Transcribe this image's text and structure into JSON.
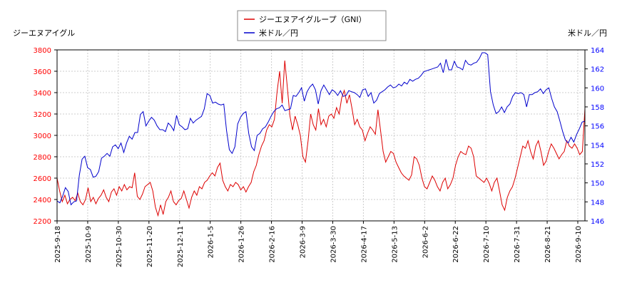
{
  "chart_data": {
    "type": "line",
    "left_axis_label": "ジーエヌアイグル",
    "right_axis_label": "米ドル／円",
    "legend": [
      "ジーエヌアイグループ（GNI）",
      "米ドル／円"
    ],
    "legend_placement": "top-center",
    "grid": true,
    "ylim_left": [
      2200,
      3800
    ],
    "ylim_right": [
      146,
      164
    ],
    "yticks_left": [
      2200,
      2400,
      2600,
      2800,
      3000,
      3200,
      3400,
      3600,
      3800
    ],
    "yticks_right": [
      146,
      148,
      150,
      152,
      154,
      156,
      158,
      160,
      162,
      164
    ],
    "x_tick_labels": [
      "2025-9-18",
      "2025-10-9",
      "2025-10-30",
      "2025-11-20",
      "2025-12-11",
      "2026-1-5",
      "2026-1-26",
      "2026-2-16",
      "2026-3-9",
      "2026-3-30",
      "2026-4-17",
      "2026-5-13",
      "2026-6-2",
      "2026-6-22",
      "2026-7-10",
      "2026-7-31",
      "2026-8-21",
      "2026-9-10"
    ],
    "colors": {
      "series1": "#dd0000",
      "series2": "#0000cc",
      "grid": "#cccccc",
      "axis": "#000000"
    },
    "series": [
      {
        "name": "ジーエヌアイグループ（GNI）",
        "axis": "left",
        "values": [
          2600,
          2480,
          2380,
          2440,
          2360,
          2400,
          2420,
          2390,
          2460,
          2380,
          2350,
          2400,
          2510,
          2380,
          2420,
          2360,
          2410,
          2440,
          2490,
          2420,
          2380,
          2470,
          2500,
          2440,
          2520,
          2480,
          2540,
          2490,
          2520,
          2510,
          2650,
          2430,
          2400,
          2450,
          2520,
          2540,
          2560,
          2480,
          2330,
          2250,
          2350,
          2260,
          2380,
          2420,
          2480,
          2380,
          2350,
          2390,
          2410,
          2480,
          2400,
          2320,
          2420,
          2480,
          2440,
          2520,
          2500,
          2560,
          2580,
          2620,
          2650,
          2620,
          2700,
          2740,
          2580,
          2520,
          2480,
          2540,
          2520,
          2560,
          2540,
          2490,
          2520,
          2470,
          2520,
          2560,
          2660,
          2720,
          2820,
          2900,
          2950,
          3050,
          3100,
          3080,
          3150,
          3400,
          3600,
          3300,
          3700,
          3450,
          3180,
          3050,
          3180,
          3100,
          3000,
          2800,
          2750,
          2950,
          3200,
          3100,
          3050,
          3250,
          3100,
          3150,
          3080,
          3180,
          3200,
          3160,
          3260,
          3200,
          3350,
          3420,
          3300,
          3380,
          3250,
          3100,
          3150,
          3080,
          3050,
          2950,
          3020,
          3080,
          3050,
          3010,
          3240,
          3050,
          2850,
          2750,
          2800,
          2850,
          2830,
          2750,
          2700,
          2650,
          2620,
          2600,
          2580,
          2630,
          2800,
          2780,
          2720,
          2600,
          2520,
          2500,
          2560,
          2620,
          2580,
          2520,
          2480,
          2560,
          2600,
          2500,
          2540,
          2600,
          2720,
          2800,
          2850,
          2830,
          2820,
          2900,
          2880,
          2800,
          2620,
          2600,
          2580,
          2560,
          2600,
          2550,
          2480,
          2560,
          2600,
          2480,
          2350,
          2300,
          2420,
          2480,
          2520,
          2600,
          2700,
          2800,
          2900,
          2880,
          2950,
          2850,
          2780,
          2900,
          2950,
          2850,
          2720,
          2760,
          2850,
          2920,
          2880,
          2830,
          2780,
          2820,
          2850,
          2950,
          2900,
          2880,
          2920,
          2880,
          2820,
          2850,
          3250
        ]
      },
      {
        "name": "米ドル／円",
        "axis": "right",
        "values": [
          148.1,
          147.9,
          148.6,
          149.5,
          149.1,
          147.7,
          148.0,
          148.1,
          150.8,
          152.5,
          152.8,
          151.6,
          151.4,
          150.6,
          150.7,
          151.2,
          152.6,
          152.8,
          153.1,
          152.8,
          153.8,
          154.0,
          153.6,
          154.2,
          153.2,
          154.2,
          154.9,
          154.6,
          155.3,
          155.3,
          157.2,
          157.5,
          156.0,
          156.5,
          156.9,
          156.6,
          156.0,
          155.6,
          155.6,
          155.4,
          156.3,
          156.0,
          155.5,
          157.1,
          156.1,
          155.9,
          155.6,
          155.7,
          156.8,
          156.3,
          156.6,
          156.8,
          157.0,
          157.8,
          159.4,
          159.2,
          158.4,
          158.5,
          158.3,
          158.2,
          158.3,
          155.5,
          153.5,
          153.1,
          153.8,
          156.2,
          156.9,
          157.3,
          157.5,
          155.2,
          153.8,
          153.4,
          155.0,
          155.2,
          155.7,
          155.9,
          156.4,
          157.0,
          157.5,
          157.8,
          157.9,
          158.2,
          157.6,
          157.7,
          157.8,
          159.2,
          159.1,
          159.5,
          160.0,
          158.6,
          159.6,
          160.1,
          160.4,
          159.8,
          158.3,
          159.7,
          160.3,
          159.8,
          159.3,
          159.8,
          159.6,
          159.2,
          159.7,
          159.1,
          159.2,
          159.7,
          159.6,
          159.5,
          159.3,
          159.0,
          159.8,
          159.9,
          159.1,
          159.5,
          158.4,
          158.7,
          159.4,
          159.6,
          159.8,
          160.1,
          160.3,
          160.0,
          160.1,
          160.4,
          160.2,
          160.6,
          160.4,
          160.9,
          160.7,
          160.9,
          161.0,
          161.3,
          161.7,
          161.8,
          161.9,
          162.0,
          162.1,
          162.2,
          162.6,
          161.6,
          163.0,
          161.9,
          161.9,
          162.8,
          162.2,
          162.1,
          161.9,
          162.9,
          162.5,
          162.4,
          162.6,
          162.7,
          163.1,
          163.7,
          163.7,
          163.5,
          159.6,
          158.2,
          157.3,
          157.5,
          158.0,
          157.4,
          158.0,
          158.3,
          159.1,
          159.5,
          159.4,
          159.5,
          159.3,
          158.0,
          159.3,
          159.3,
          159.5,
          159.6,
          159.9,
          159.4,
          159.8,
          160.0,
          158.9,
          158.0,
          157.5,
          156.5,
          155.4,
          154.5,
          154.2,
          154.8,
          154.3,
          155.1,
          155.7,
          156.4,
          156.5
        ]
      }
    ]
  }
}
